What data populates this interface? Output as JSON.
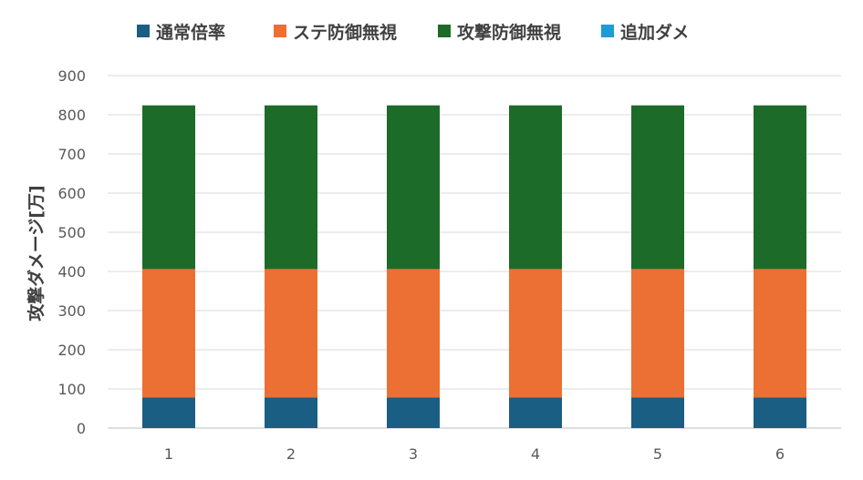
{
  "chart_data": {
    "type": "bar",
    "stacked": true,
    "title": "",
    "xlabel": "",
    "ylabel": "攻撃ダメージ[万]",
    "ylim": [
      0,
      900
    ],
    "yticks": [
      0,
      100,
      200,
      300,
      400,
      500,
      600,
      700,
      800,
      900
    ],
    "categories": [
      "1",
      "2",
      "3",
      "4",
      "5",
      "6"
    ],
    "grid": true,
    "legend_position": "top",
    "series": [
      {
        "name": "通常倍率",
        "color": "#1a5e84",
        "values": [
          78,
          78,
          78,
          78,
          78,
          78
        ]
      },
      {
        "name": "ステ防御無視",
        "color": "#ec7033",
        "values": [
          328,
          328,
          328,
          328,
          328,
          328
        ]
      },
      {
        "name": "攻撃防御無視",
        "color": "#1d6b28",
        "values": [
          418,
          418,
          418,
          418,
          418,
          418
        ]
      },
      {
        "name": "追加ダメ",
        "color": "#1f9bd7",
        "values": [
          0,
          0,
          0,
          0,
          0,
          0
        ]
      }
    ]
  }
}
